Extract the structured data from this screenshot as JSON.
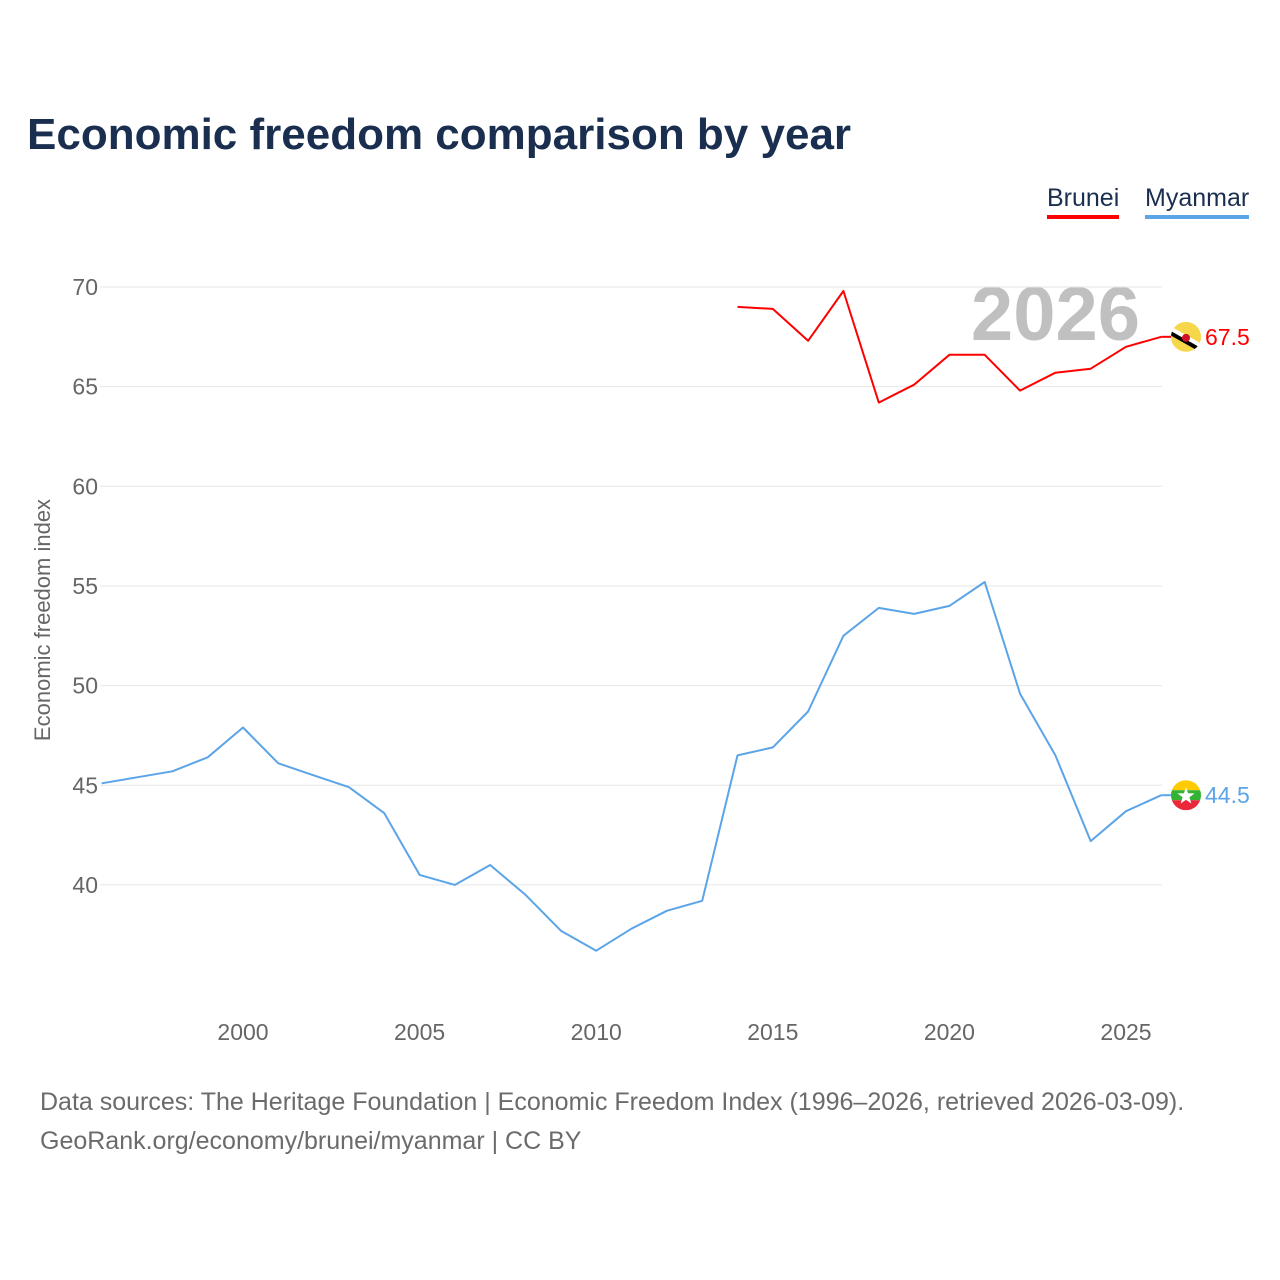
{
  "chart_data": {
    "type": "line",
    "title": "Economic freedom comparison by year",
    "xlabel": "",
    "ylabel": "Economic freedom index",
    "xlim": [
      1996,
      2026
    ],
    "ylim": [
      35,
      71
    ],
    "x_ticks": [
      "2000",
      "2005",
      "2010",
      "2015",
      "2020",
      "2025"
    ],
    "y_ticks": [
      "40",
      "45",
      "50",
      "55",
      "60",
      "65",
      "70"
    ],
    "watermark_year": "2026",
    "legend_position": "top-right",
    "series": [
      {
        "name": "Brunei",
        "color": "#ff0000",
        "flag": "brunei-flag-icon",
        "end_label": "67.5",
        "x": [
          2014,
          2015,
          2016,
          2017,
          2018,
          2019,
          2020,
          2021,
          2022,
          2023,
          2024,
          2025,
          2026
        ],
        "values": [
          69.0,
          68.9,
          67.3,
          69.8,
          64.2,
          65.1,
          66.6,
          66.6,
          64.8,
          65.7,
          65.9,
          67.0,
          67.5
        ]
      },
      {
        "name": "Myanmar",
        "color": "#5ba4e8",
        "flag": "myanmar-flag-icon",
        "end_label": "44.5",
        "x": [
          1996,
          1997,
          1998,
          1999,
          2000,
          2001,
          2002,
          2003,
          2004,
          2005,
          2006,
          2007,
          2008,
          2009,
          2010,
          2011,
          2012,
          2013,
          2014,
          2015,
          2016,
          2017,
          2018,
          2019,
          2020,
          2021,
          2022,
          2023,
          2024,
          2025,
          2026
        ],
        "values": [
          45.1,
          45.4,
          45.7,
          46.4,
          47.9,
          46.1,
          45.5,
          44.9,
          43.6,
          40.5,
          40.0,
          41.0,
          39.5,
          37.7,
          36.7,
          37.8,
          38.7,
          39.2,
          46.5,
          46.9,
          48.7,
          52.5,
          53.9,
          53.6,
          54.0,
          55.2,
          49.6,
          46.5,
          42.2,
          43.7,
          44.5
        ]
      }
    ]
  },
  "footer": {
    "line1": "Data sources: The Heritage Foundation | Economic Freedom Index (1996–2026, retrieved 2026-03-09).",
    "line2": "GeoRank.org/economy/brunei/myanmar | CC BY"
  }
}
